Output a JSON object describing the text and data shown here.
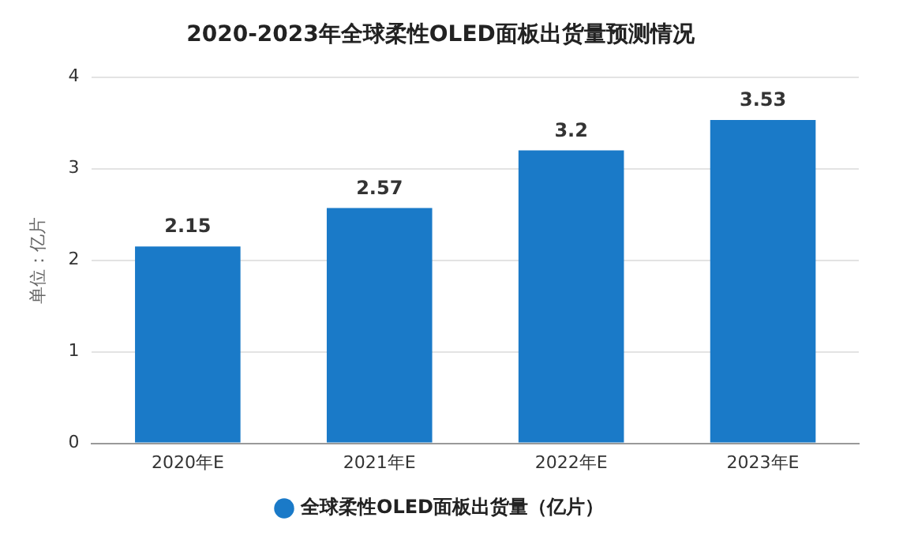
{
  "chart_data": {
    "type": "bar",
    "title": "2020-2023年全球柔性OLED面板出货量预测情况",
    "ylabel": "单位：亿片",
    "categories": [
      "2020年E",
      "2021年E",
      "2022年E",
      "2023年E"
    ],
    "series": [
      {
        "name": "全球柔性OLED面板出货量（亿片）",
        "color": "#1a7ac8",
        "values": [
          2.15,
          2.57,
          3.2,
          3.53
        ]
      }
    ],
    "ylim": [
      0,
      4
    ],
    "yticks": [
      0,
      1,
      2,
      3,
      4
    ],
    "grid": "y",
    "legend": "bottom",
    "data_labels": true
  }
}
